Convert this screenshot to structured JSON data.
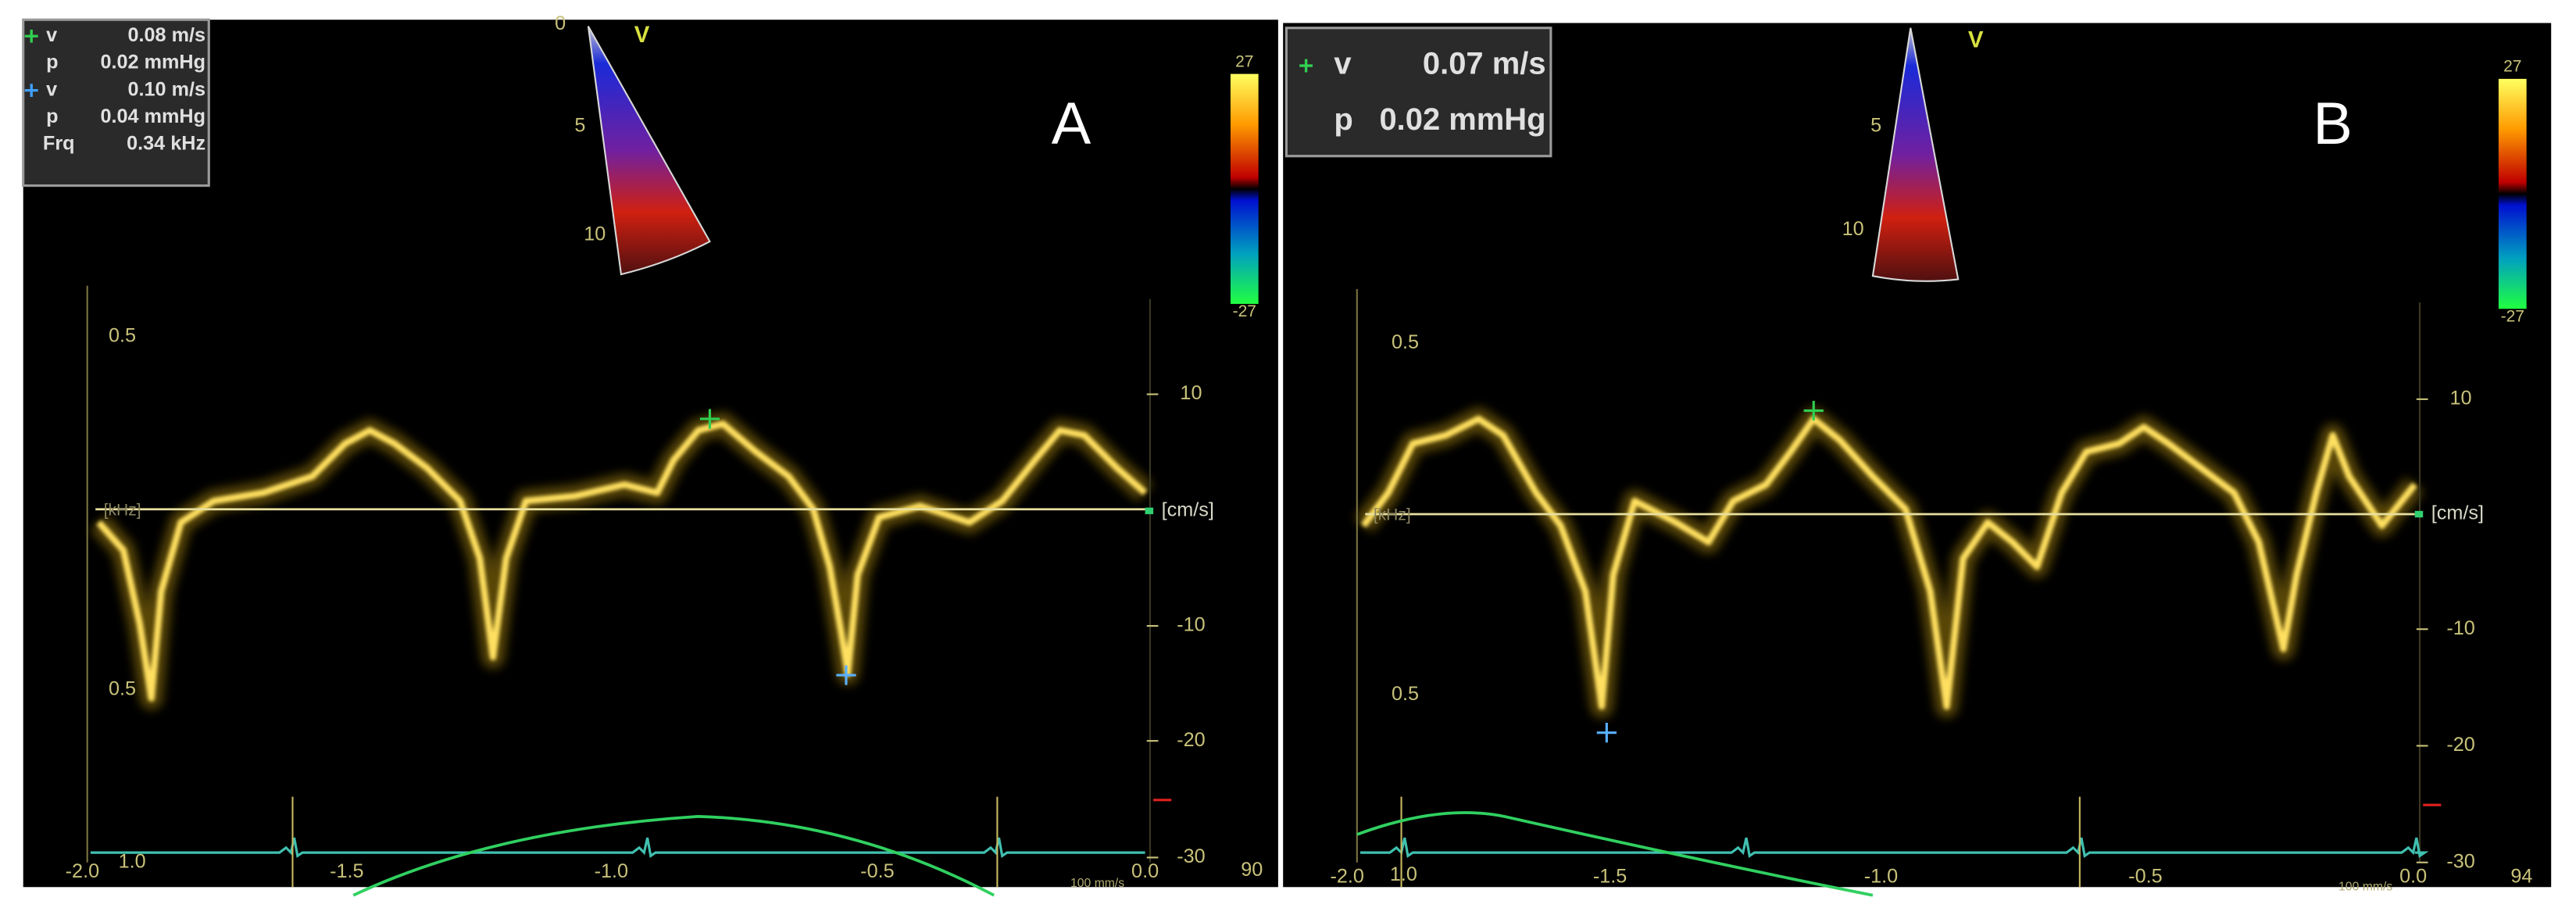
{
  "panels": [
    {
      "label": "A",
      "beam_label": "V",
      "depth_labels": [
        "0",
        "5",
        "10"
      ],
      "readout": [
        {
          "name": "v",
          "value": "0.08 m/s"
        },
        {
          "name": "p",
          "value": "0.02 mmHg"
        },
        {
          "name": "v",
          "value": "0.10 m/s"
        },
        {
          "name": "p",
          "value": "0.04 mmHg"
        },
        {
          "name": "Frq",
          "value": "0.34 kHz"
        }
      ],
      "colorbar": {
        "max": "27",
        "min": "-27"
      },
      "left_ticks": [
        "0.5",
        "0.5",
        "1.0"
      ],
      "baseline_label": "[kHz]",
      "velocity_ticks": [
        "10",
        "-10",
        "-20",
        "-30"
      ],
      "velocity_unit": "[cm/s]",
      "time_ticks": [
        "-2.0",
        "-1.5",
        "-1.0",
        "-0.5",
        "0.0"
      ],
      "sweep_speed": "100 mm/s",
      "heart_rate": "90"
    },
    {
      "label": "B",
      "beam_label": "V",
      "depth_labels": [
        "5",
        "10"
      ],
      "readout": [
        {
          "name": "v",
          "value": "0.07 m/s"
        },
        {
          "name": "p",
          "value": "0.02 mmHg"
        }
      ],
      "colorbar": {
        "max": "27",
        "min": "-27"
      },
      "left_ticks": [
        "0.5",
        "0.5",
        "1.0"
      ],
      "baseline_label": "[kHz]",
      "velocity_ticks": [
        "10",
        "-10",
        "-20",
        "-30"
      ],
      "velocity_unit": "[cm/s]",
      "time_ticks": [
        "-2.0",
        "-1.5",
        "-1.0",
        "-0.5",
        "0.0"
      ],
      "sweep_speed": "100 mm/s",
      "heart_rate": "94"
    }
  ]
}
